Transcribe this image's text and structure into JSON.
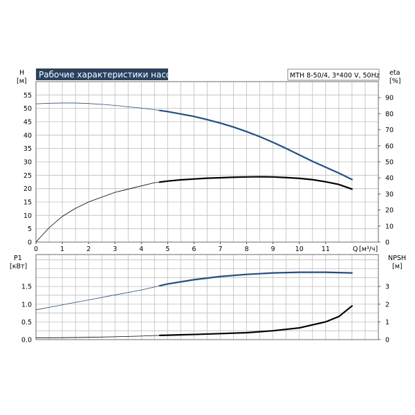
{
  "chart_data": [
    {
      "type": "line",
      "title": "Рабочие характеристики насоса",
      "subtitle": "MTH 8-50/4, 3*400 V, 50Hz",
      "xlabel": "Q",
      "xunit": "[м³/ч]",
      "ylabel_left": "H",
      "yunit_left": "[м]",
      "ylabel_right": "eta",
      "yunit_right": "[%]",
      "xlim": [
        0,
        13
      ],
      "ylim_left": [
        0,
        60
      ],
      "ylim_right": [
        0,
        100
      ],
      "grid": true,
      "x_ticks": [
        0,
        1,
        2,
        3,
        4,
        5,
        6,
        7,
        8,
        9,
        10,
        11
      ],
      "y_ticks_left": [
        0,
        5,
        10,
        15,
        20,
        25,
        30,
        35,
        40,
        45,
        50,
        55
      ],
      "y_ticks_right": [
        0,
        10,
        20,
        30,
        40,
        50,
        60,
        70,
        80,
        90
      ],
      "series": [
        {
          "axis": "left",
          "color": "#1f4e8c",
          "operating_range_start": 4.7,
          "x": [
            0,
            0.5,
            1,
            1.5,
            2,
            2.5,
            3,
            3.5,
            4,
            4.5,
            5,
            5.5,
            6,
            6.5,
            7,
            7.5,
            8,
            8.5,
            9,
            9.5,
            10,
            10.5,
            11,
            11.5,
            12
          ],
          "values": [
            51.7,
            51.9,
            52.0,
            52.0,
            51.8,
            51.5,
            51.1,
            50.6,
            50.1,
            49.5,
            48.8,
            47.9,
            47.0,
            45.8,
            44.5,
            43.0,
            41.3,
            39.4,
            37.3,
            35.0,
            32.6,
            30.2,
            28.0,
            25.8,
            23.4
          ]
        },
        {
          "axis": "right",
          "color": "#000000",
          "operating_range_start": 4.7,
          "x": [
            0,
            0.5,
            1,
            1.5,
            2,
            2.5,
            3,
            3.5,
            4,
            4.5,
            5,
            5.5,
            6,
            6.5,
            7,
            7.5,
            8,
            8.5,
            9,
            9.5,
            10,
            10.5,
            11,
            11.5,
            12
          ],
          "values": [
            0,
            9,
            16,
            21,
            25,
            28,
            31,
            33,
            35,
            37,
            38,
            38.8,
            39.3,
            39.8,
            40.1,
            40.4,
            40.6,
            40.7,
            40.6,
            40.2,
            39.7,
            38.9,
            37.6,
            35.9,
            33
          ]
        }
      ]
    },
    {
      "type": "line",
      "ylabel_left": "P1",
      "yunit_left": "[кВт]",
      "ylabel_right": "NPSH",
      "yunit_right": "[м]",
      "xlim": [
        0,
        13
      ],
      "ylim_left": [
        0,
        2.4
      ],
      "ylim_right": [
        0,
        4.8
      ],
      "grid": true,
      "y_ticks_left": [
        "0.0",
        "0.5",
        "1.0",
        "1.5"
      ],
      "y_ticks_right": [
        0,
        1,
        2,
        3
      ],
      "series": [
        {
          "axis": "left",
          "color": "#1f4e8c",
          "operating_range_start": 4.7,
          "x": [
            0,
            1,
            2,
            3,
            4,
            4.7,
            5,
            6,
            7,
            8,
            9,
            10,
            11,
            12
          ],
          "values": [
            0.84,
            0.98,
            1.12,
            1.26,
            1.4,
            1.52,
            1.57,
            1.69,
            1.78,
            1.84,
            1.88,
            1.9,
            1.9,
            1.88
          ]
        },
        {
          "axis": "right",
          "color": "#000000",
          "operating_range_start": 4.7,
          "x": [
            0,
            1,
            2,
            3,
            4,
            4.7,
            5,
            6,
            7,
            8,
            9,
            10,
            11,
            11.5,
            12
          ],
          "values": [
            0.1,
            0.11,
            0.13,
            0.16,
            0.2,
            0.24,
            0.25,
            0.29,
            0.34,
            0.39,
            0.5,
            0.66,
            1.0,
            1.3,
            1.9
          ]
        }
      ]
    }
  ]
}
